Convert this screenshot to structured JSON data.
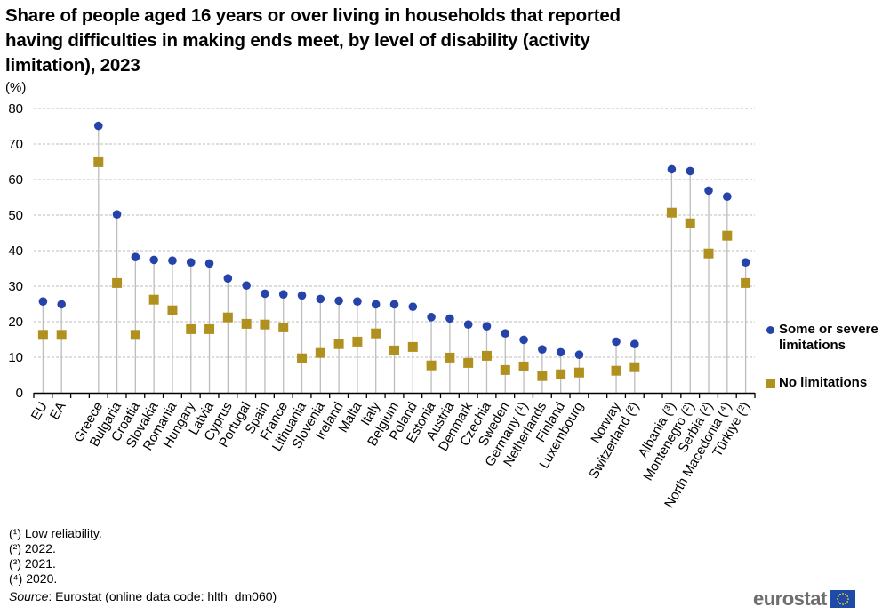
{
  "chart_data": {
    "type": "scatter",
    "subtype": "dot-plot",
    "title": "Share of people aged 16 years or over living in households that reported having difficulties in making ends meet, by level of disability (activity limitation), 2023",
    "ylabel": "(%)",
    "xlabel": "",
    "ylim": [
      0,
      80
    ],
    "yticks": [
      0,
      10,
      20,
      30,
      40,
      50,
      60,
      70,
      80
    ],
    "grid": true,
    "legend_position": "right",
    "categories": [
      "EU",
      "EA",
      "",
      "Greece",
      "Bulgaria",
      "Croatia",
      "Slovakia",
      "Romania",
      "Hungary",
      "Latvia",
      "Cyprus",
      "Portugal",
      "Spain",
      "France",
      "Lithuania",
      "Slovenia",
      "Ireland",
      "Malta",
      "Italy",
      "Belgium",
      "Poland",
      "Estonia",
      "Austria",
      "Denmark",
      "Czechia",
      "Sweden",
      "Germany (¹)",
      "Netherlands",
      "Finland",
      "Luxembourg",
      "",
      "Norway",
      "Switzerland (²)",
      "",
      "Albania (³)",
      "Montenegro (²)",
      "Serbia (²)",
      "North Macedonia (⁴)",
      "Türkiye (²)"
    ],
    "series": [
      {
        "name": "Some or severe limitations",
        "marker": "circle",
        "color": "#2643a9",
        "values": [
          25.7,
          24.9,
          null,
          75.1,
          50.2,
          38.2,
          37.4,
          37.2,
          36.7,
          36.4,
          32.2,
          30.2,
          27.9,
          27.7,
          27.4,
          26.4,
          25.9,
          25.7,
          24.9,
          24.9,
          24.2,
          21.3,
          20.9,
          19.2,
          18.7,
          16.7,
          14.9,
          12.2,
          11.4,
          10.7,
          null,
          14.4,
          13.7,
          null,
          62.9,
          62.4,
          56.9,
          55.2,
          36.7
        ]
      },
      {
        "name": "No limitations",
        "marker": "square",
        "color": "#b09120",
        "values": [
          16.3,
          16.3,
          null,
          64.9,
          30.9,
          16.3,
          26.2,
          23.2,
          17.9,
          17.9,
          21.2,
          19.4,
          19.2,
          18.4,
          9.7,
          11.2,
          13.7,
          14.4,
          16.7,
          11.9,
          12.9,
          7.7,
          9.9,
          8.4,
          10.4,
          6.4,
          7.4,
          4.7,
          5.2,
          5.7,
          null,
          6.2,
          7.2,
          null,
          50.7,
          47.7,
          39.2,
          44.2,
          30.9
        ]
      }
    ]
  },
  "footnotes": [
    "(¹) Low reliability.",
    "(²) 2022.",
    "(³) 2021.",
    "(⁴) 2020."
  ],
  "source": {
    "label": "Source",
    "text": ": Eurostat (online data code: hlth_dm060)"
  },
  "logo": {
    "text": "eurostat",
    "flag_icon": "eu-flag-icon"
  }
}
